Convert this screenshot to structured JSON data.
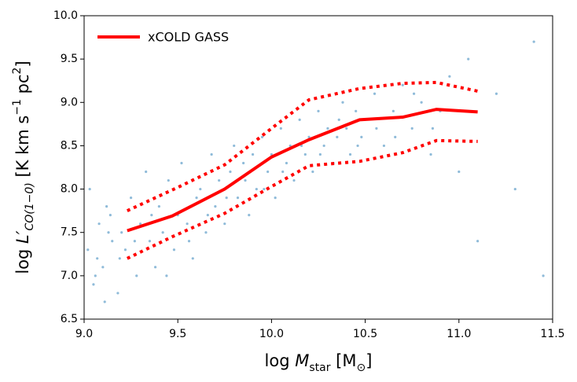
{
  "chart_data": {
    "type": "scatter",
    "xlabel": [
      "log ",
      "M",
      "star",
      " [M",
      "⊙",
      "]"
    ],
    "ylabel": [
      "log ",
      "L′",
      "CO(1−0)",
      " [K km s",
      "−1",
      " pc",
      "2",
      "]"
    ],
    "xlim": [
      9.0,
      11.5
    ],
    "ylim": [
      6.5,
      10.0
    ],
    "xticks": [
      {
        "value": 9.0,
        "label": "9.0"
      },
      9.5,
      {
        "value": 10.0,
        "label": "10.0"
      },
      10.5,
      {
        "value": 11.0,
        "label": "11.0"
      },
      11.5
    ],
    "yticks": [
      6.5,
      {
        "value": 7.0,
        "label": "7.0"
      },
      7.5,
      {
        "value": 8.0,
        "label": "8.0"
      },
      8.5,
      {
        "value": 9.0,
        "label": "9.0"
      },
      9.5,
      {
        "value": 10.0,
        "label": "10.0"
      }
    ],
    "color": "#1f77b4",
    "x": [
      9.02,
      9.05,
      9.08,
      9.1,
      9.12,
      9.15,
      9.18,
      9.2,
      9.03,
      9.07,
      9.11,
      9.14,
      9.22,
      9.25,
      9.28,
      9.3,
      9.33,
      9.35,
      9.38,
      9.4,
      9.42,
      9.45,
      9.48,
      9.5,
      9.52,
      9.55,
      9.58,
      9.6,
      9.62,
      9.65,
      9.68,
      9.7,
      9.72,
      9.75,
      9.78,
      9.8,
      9.82,
      9.85,
      9.88,
      9.9,
      9.92,
      9.95,
      9.98,
      10.0,
      10.02,
      10.05,
      10.08,
      10.1,
      10.12,
      10.15,
      10.18,
      10.2,
      10.22,
      10.25,
      10.28,
      10.3,
      10.33,
      10.35,
      10.38,
      10.4,
      10.42,
      10.45,
      10.48,
      10.5,
      10.55,
      10.6,
      10.65,
      10.7,
      10.75,
      10.8,
      10.85,
      10.9,
      10.95,
      11.0,
      11.05,
      11.1,
      11.2,
      11.3,
      11.4,
      11.45,
      9.06,
      9.13,
      9.19,
      9.27,
      9.36,
      9.44,
      9.56,
      9.66,
      9.76,
      9.86,
      9.96,
      10.06,
      10.16,
      10.26,
      10.36,
      10.46,
      10.56,
      10.66,
      10.76,
      10.86
    ],
    "y": [
      7.3,
      6.9,
      7.6,
      7.1,
      7.8,
      7.4,
      6.8,
      7.5,
      8.0,
      7.2,
      6.7,
      7.7,
      7.3,
      7.9,
      7.0,
      7.6,
      8.2,
      7.4,
      7.1,
      7.8,
      7.5,
      8.1,
      7.3,
      7.7,
      8.3,
      7.6,
      7.2,
      7.9,
      8.0,
      7.5,
      8.4,
      7.8,
      8.1,
      7.6,
      8.2,
      8.5,
      7.9,
      8.3,
      7.7,
      8.4,
      8.0,
      8.6,
      8.2,
      8.4,
      7.9,
      8.7,
      8.3,
      8.5,
      8.1,
      8.8,
      8.4,
      8.6,
      8.2,
      8.9,
      8.5,
      8.7,
      8.3,
      8.6,
      9.0,
      8.7,
      8.4,
      8.9,
      8.6,
      8.8,
      9.1,
      8.5,
      8.9,
      9.2,
      8.7,
      9.0,
      8.4,
      8.9,
      9.3,
      8.2,
      9.5,
      7.4,
      9.1,
      8.0,
      9.7,
      7.0,
      7.0,
      7.5,
      7.2,
      7.4,
      7.7,
      7.0,
      7.4,
      7.7,
      7.9,
      8.1,
      8.0,
      8.2,
      8.5,
      8.4,
      8.8,
      8.5,
      8.7,
      8.6,
      9.1,
      8.7
    ],
    "lines": [
      {
        "name": "xCOLD GASS",
        "color": "#ff0000",
        "style": "solid",
        "x": [
          9.23,
          9.47,
          9.75,
          10.0,
          10.2,
          10.47,
          10.7,
          10.88,
          11.1
        ],
        "y": [
          7.52,
          7.69,
          8.0,
          8.37,
          8.57,
          8.8,
          8.83,
          8.92,
          8.89
        ]
      },
      {
        "color": "#ff0000",
        "style": "dotted",
        "x": [
          9.23,
          9.5,
          9.75,
          10.0,
          10.2,
          10.47,
          10.7,
          10.88,
          11.1
        ],
        "y": [
          7.75,
          8.02,
          8.28,
          8.7,
          9.03,
          9.16,
          9.22,
          9.23,
          9.13
        ]
      },
      {
        "color": "#ff0000",
        "style": "dotted",
        "x": [
          9.23,
          9.47,
          9.75,
          10.0,
          10.2,
          10.47,
          10.7,
          10.88,
          11.1
        ],
        "y": [
          7.2,
          7.45,
          7.72,
          8.03,
          8.27,
          8.32,
          8.42,
          8.56,
          8.55
        ]
      }
    ]
  }
}
